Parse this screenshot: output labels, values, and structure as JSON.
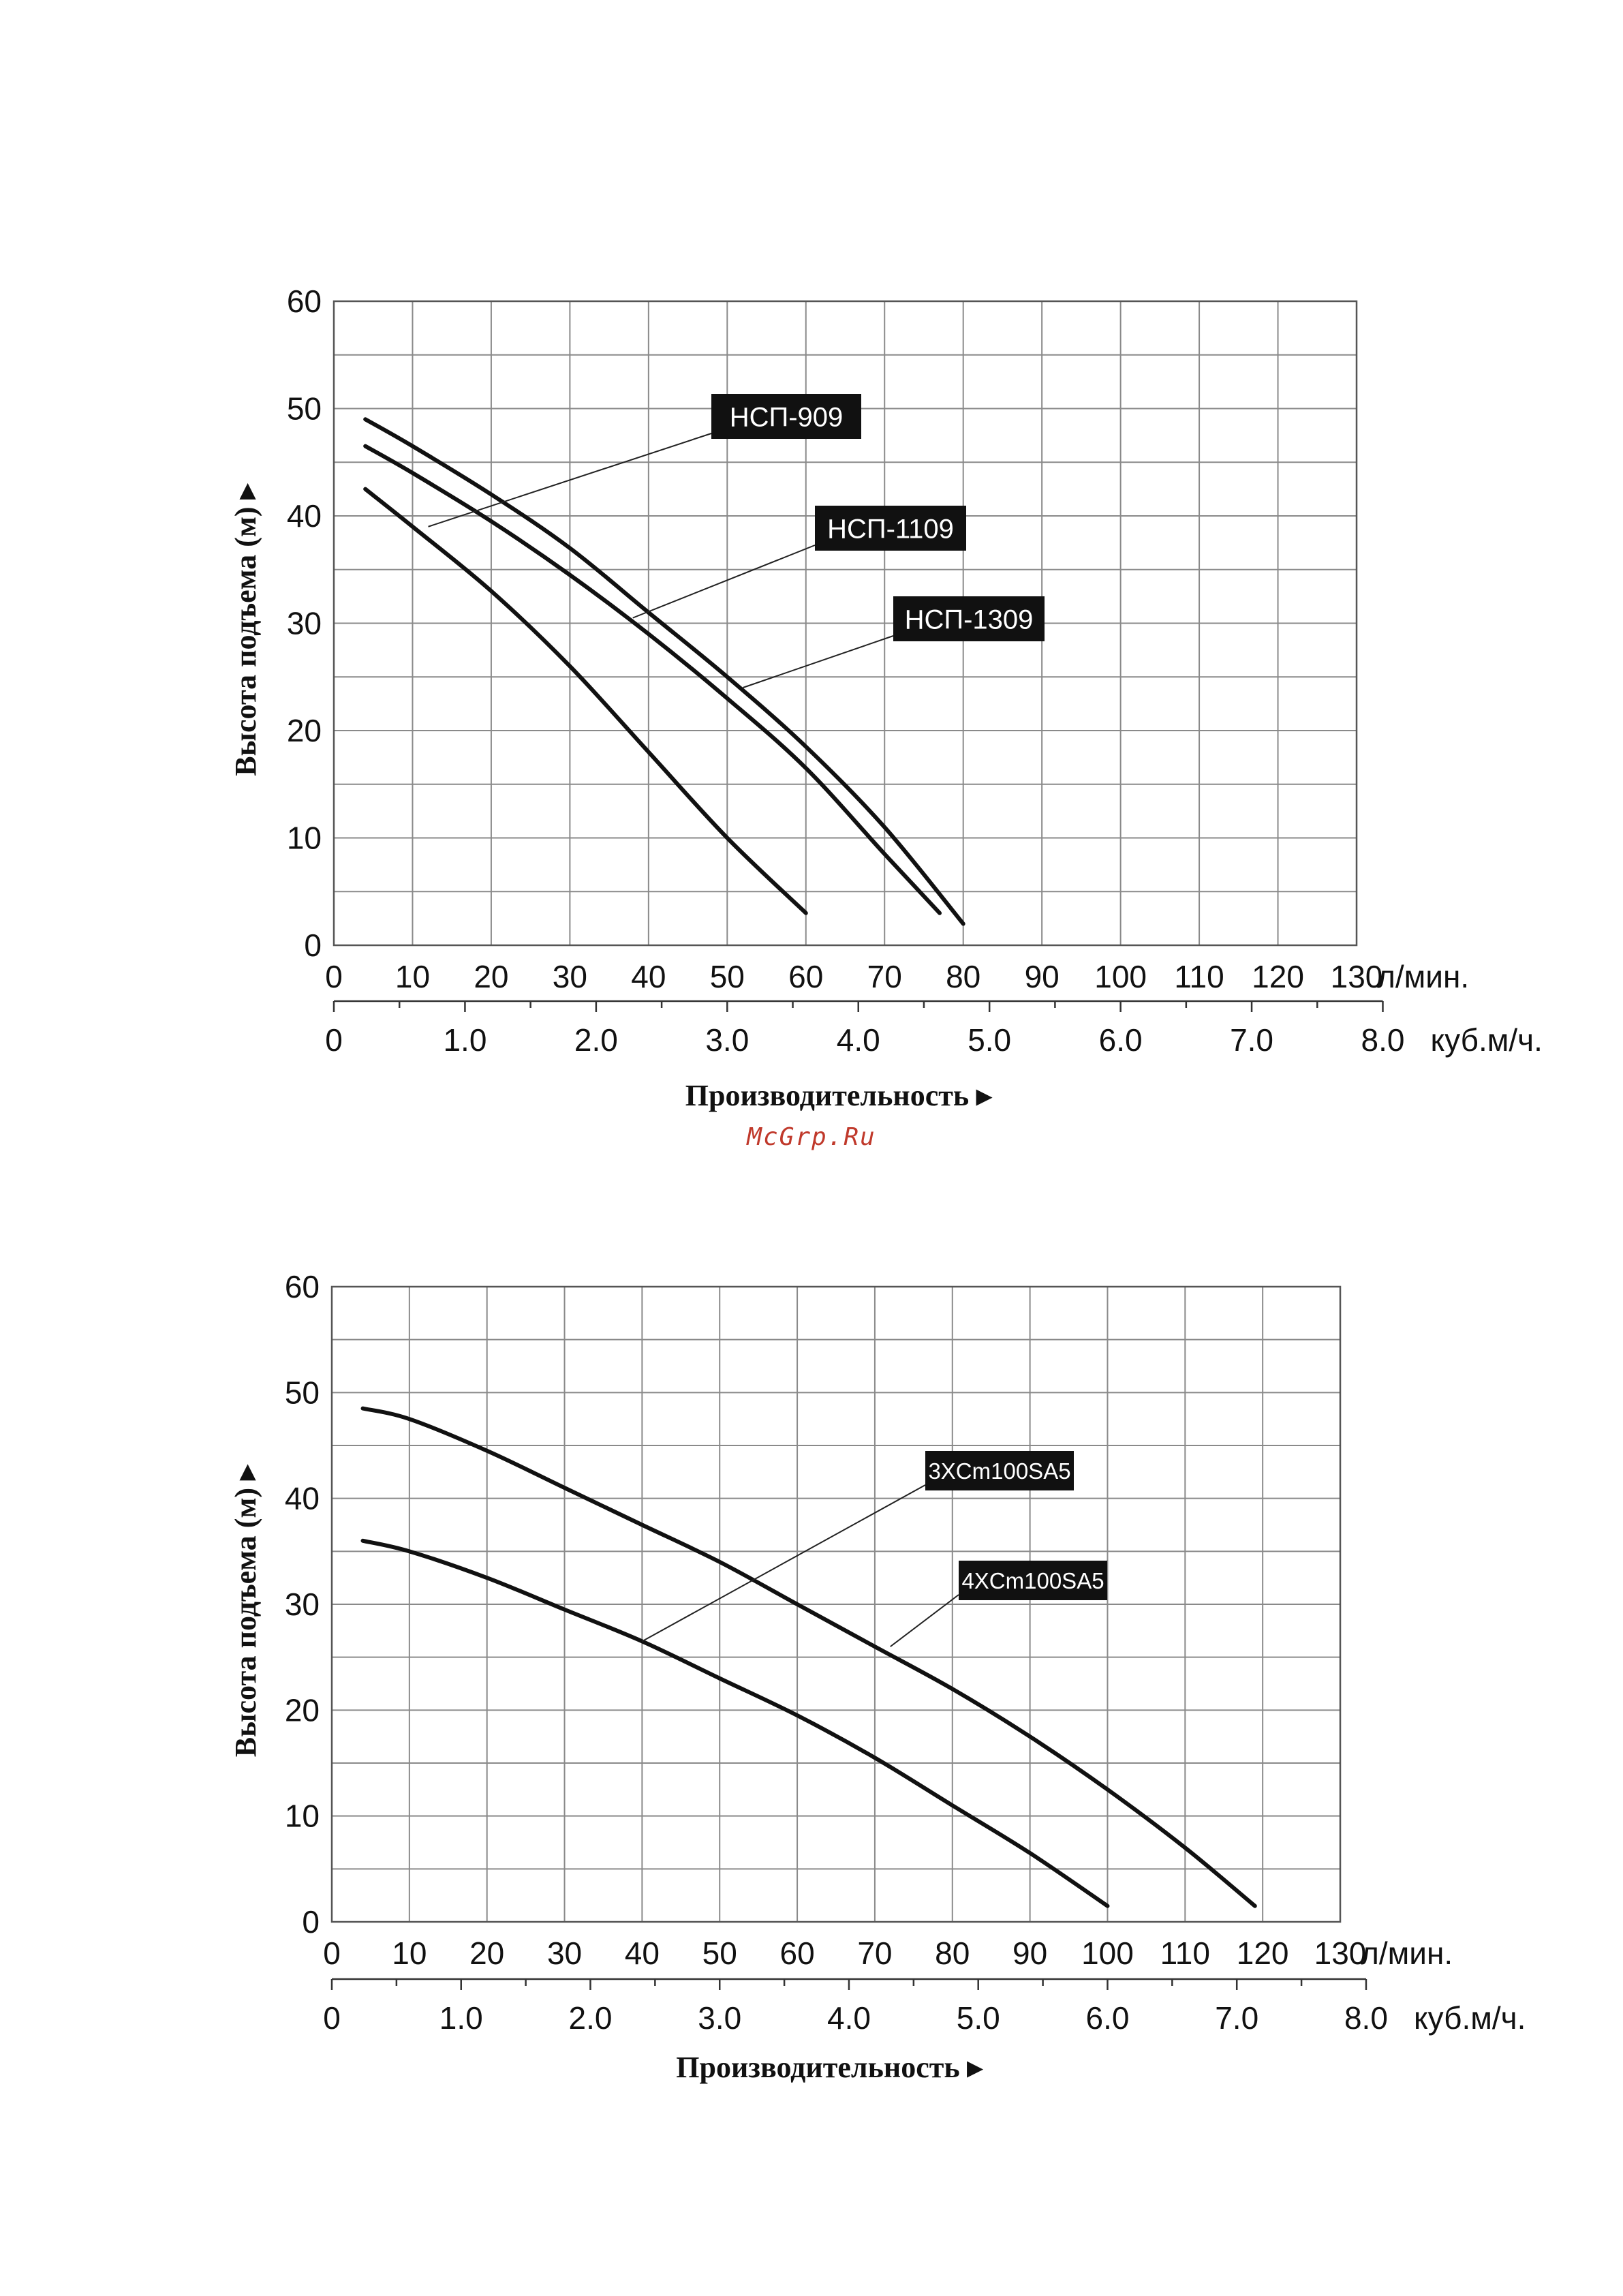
{
  "watermark": "McGrp.Ru",
  "chart_data": [
    {
      "type": "line",
      "ylabel": "Высота подъема (м) ▸",
      "xlabel": "Производительность ▸",
      "x_unit": "л/мин.",
      "x2_unit": "куб.м/ч.",
      "xlim": [
        0,
        130
      ],
      "ylim": [
        0,
        60
      ],
      "x_ticks": [
        "0",
        "10",
        "20",
        "30",
        "40",
        "50",
        "60",
        "70",
        "80",
        "90",
        "100",
        "110",
        "120",
        "130"
      ],
      "y_ticks": [
        "0",
        "10",
        "20",
        "30",
        "40",
        "50",
        "60"
      ],
      "x2_ticks": [
        "0",
        "1.0",
        "2.0",
        "3.0",
        "4.0",
        "5.0",
        "6.0",
        "7.0",
        "8.0"
      ],
      "grid": true,
      "series": [
        {
          "name": "НСП-909",
          "x": [
            4,
            10,
            20,
            30,
            40,
            50,
            60
          ],
          "y": [
            42.5,
            39,
            33,
            26,
            18,
            10,
            3
          ]
        },
        {
          "name": "НСП-1109",
          "x": [
            4,
            10,
            20,
            30,
            40,
            50,
            60,
            70,
            77
          ],
          "y": [
            46.5,
            44,
            39.5,
            34.5,
            29,
            23,
            16.5,
            8.5,
            3
          ]
        },
        {
          "name": "НСП-1309",
          "x": [
            4,
            10,
            20,
            30,
            40,
            50,
            60,
            70,
            80
          ],
          "y": [
            49,
            46.5,
            42,
            37,
            31,
            25,
            18.5,
            11,
            2
          ]
        }
      ],
      "callouts": [
        {
          "label": "НСП-909",
          "target": [
            12,
            39
          ]
        },
        {
          "label": "НСП-1109",
          "target": [
            38,
            30.5
          ]
        },
        {
          "label": "НСП-1309",
          "target": [
            52,
            24
          ]
        }
      ]
    },
    {
      "type": "line",
      "ylabel": "Высота подъема (м) ▸",
      "xlabel": "Производительность ▸",
      "x_unit": "л/мин.",
      "x2_unit": "куб.м/ч.",
      "xlim": [
        0,
        130
      ],
      "ylim": [
        0,
        60
      ],
      "x_ticks": [
        "0",
        "10",
        "20",
        "30",
        "40",
        "50",
        "60",
        "70",
        "80",
        "90",
        "100",
        "110",
        "120",
        "130"
      ],
      "y_ticks": [
        "0",
        "10",
        "20",
        "30",
        "40",
        "50",
        "60"
      ],
      "x2_ticks": [
        "0",
        "1.0",
        "2.0",
        "3.0",
        "4.0",
        "5.0",
        "6.0",
        "7.0",
        "8.0"
      ],
      "grid": true,
      "series": [
        {
          "name": "3XCm100SA5",
          "x": [
            4,
            10,
            20,
            30,
            40,
            50,
            60,
            70,
            80,
            90,
            100
          ],
          "y": [
            36,
            35,
            32.5,
            29.5,
            26.5,
            23,
            19.5,
            15.5,
            11,
            6.5,
            1.5
          ]
        },
        {
          "name": "4XCm100SA5",
          "x": [
            4,
            10,
            20,
            30,
            40,
            50,
            60,
            70,
            80,
            90,
            100,
            110,
            119
          ],
          "y": [
            48.5,
            47.5,
            44.5,
            41,
            37.5,
            34,
            30,
            26,
            22,
            17.5,
            12.5,
            7,
            1.5
          ]
        }
      ],
      "callouts": [
        {
          "label": "3XCm100SA5",
          "target": [
            40,
            26.5
          ]
        },
        {
          "label": "4XCm100SA5",
          "target": [
            72,
            26
          ]
        }
      ]
    }
  ]
}
